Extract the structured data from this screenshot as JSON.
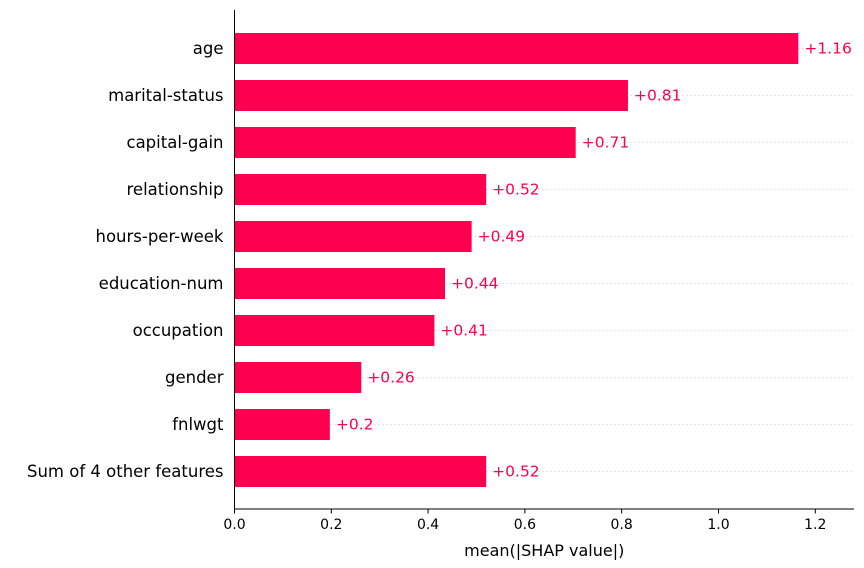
{
  "chart_data": {
    "type": "bar",
    "orientation": "horizontal",
    "xlabel": "mean(|SHAP value|)",
    "ylabel": "",
    "title": "",
    "xlim": [
      0,
      1.28
    ],
    "xticks": [
      0.0,
      0.2,
      0.4,
      0.6,
      0.8,
      1.0,
      1.2
    ],
    "xtick_labels": [
      "0.0",
      "0.2",
      "0.4",
      "0.6",
      "0.8",
      "1.0",
      "1.2"
    ],
    "bar_color": "#ff0051",
    "value_label_color": "#ff0051",
    "gridlines": "dotted horizontal guide per bar",
    "categories": [
      "age",
      "marital-status",
      "capital-gain",
      "relationship",
      "hours-per-week",
      "education-num",
      "occupation",
      "gender",
      "fnlwgt",
      "Sum of 4 other features"
    ],
    "values": [
      1.165,
      0.813,
      0.705,
      0.52,
      0.49,
      0.435,
      0.413,
      0.262,
      0.197,
      0.52
    ],
    "value_labels": [
      "+1.16",
      "+0.81",
      "+0.71",
      "+0.52",
      "+0.49",
      "+0.44",
      "+0.41",
      "+0.26",
      "+0.2",
      "+0.52"
    ]
  }
}
